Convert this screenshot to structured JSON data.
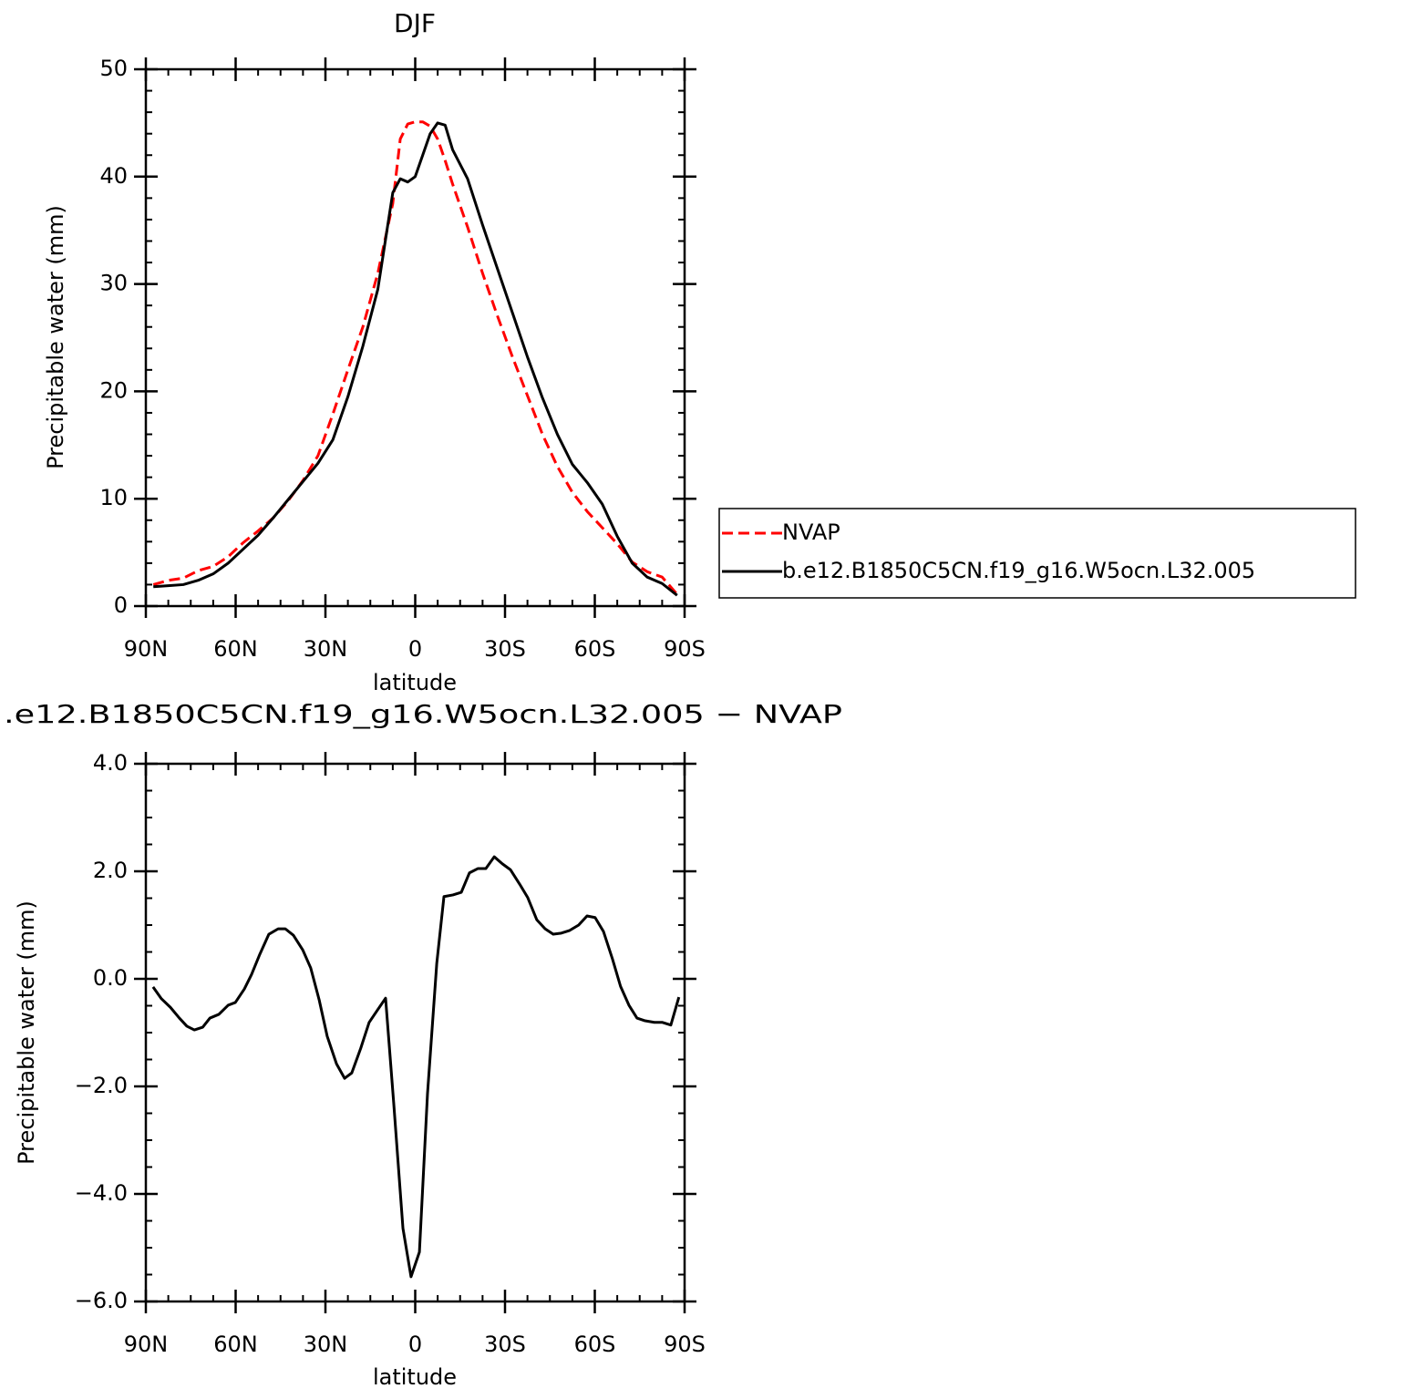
{
  "chart_data": [
    {
      "type": "line",
      "title": "DJF",
      "xlabel": "latitude",
      "ylabel": "Precipitable water (mm)",
      "xlim": [
        90,
        -90
      ],
      "xticks": [
        {
          "value": 90,
          "label": "90N"
        },
        {
          "value": 60,
          "label": "60N"
        },
        {
          "value": 30,
          "label": "30N"
        },
        0,
        {
          "value": -30,
          "label": "30S"
        },
        {
          "value": -60,
          "label": "60S"
        },
        {
          "value": -90,
          "label": "90S"
        }
      ],
      "xminorticks": [
        82.5,
        75,
        67.5,
        52.5,
        45,
        37.5,
        22.5,
        15,
        7.5,
        -7.5,
        -15,
        -22.5,
        -37.5,
        -45,
        -52.5,
        -67.5,
        -75,
        -82.5
      ],
      "ylim": [
        0,
        50
      ],
      "yticks": [
        0,
        10,
        20,
        30,
        40,
        50
      ],
      "yminorticks": [
        2,
        4,
        6,
        8,
        12,
        14,
        16,
        18,
        22,
        24,
        26,
        28,
        32,
        34,
        36,
        38,
        42,
        44,
        46,
        48
      ],
      "legend": "right",
      "x": [
        87.5,
        82.5,
        77.5,
        72.5,
        67.5,
        62.5,
        57.5,
        52.5,
        47.5,
        42.5,
        37.5,
        32.5,
        27.5,
        22.5,
        17.5,
        12.5,
        7.5,
        5,
        2.5,
        0,
        -2.5,
        -5,
        -7.5,
        -10,
        -12.5,
        -17.5,
        -22.5,
        -27.5,
        -32.5,
        -37.5,
        -42.5,
        -47.5,
        -52.5,
        -57.5,
        -62.5,
        -67.5,
        -72.5,
        -77.5,
        -82.5,
        -87.5
      ],
      "series": [
        {
          "name": "NVAP",
          "color": "#ff0000",
          "style": "dashed",
          "values": [
            2.0,
            2.4,
            2.6,
            3.3,
            3.7,
            4.6,
            5.9,
            7.0,
            8.2,
            9.8,
            11.7,
            14.0,
            17.9,
            22.0,
            26.0,
            31.0,
            37.5,
            43.5,
            44.9,
            45.1,
            45.1,
            44.7,
            43.5,
            41.5,
            39.3,
            35.3,
            31.0,
            27.0,
            23.2,
            19.6,
            16.0,
            13.0,
            10.6,
            8.8,
            7.3,
            5.8,
            4.1,
            3.2,
            2.7,
            1.1
          ]
        },
        {
          "name": "b.e12.B1850C5CN.f19_g16.W5ocn.L32.005",
          "color": "#000000",
          "style": "solid",
          "values": [
            1.8,
            1.9,
            2.0,
            2.4,
            3.0,
            4.0,
            5.3,
            6.6,
            8.2,
            9.9,
            11.6,
            13.3,
            15.5,
            19.5,
            24.2,
            29.5,
            38.5,
            39.8,
            39.5,
            40.0,
            42.0,
            44.0,
            45.0,
            44.8,
            42.5,
            39.8,
            35.5,
            31.4,
            27.3,
            23.2,
            19.4,
            16.0,
            13.2,
            11.5,
            9.5,
            6.5,
            4.0,
            2.7,
            2.1,
            1.0
          ]
        }
      ]
    },
    {
      "type": "line",
      "title": ".e12.B1850C5CN.f19_g16.W5ocn.L32.005 − NVAP",
      "xlabel": "latitude",
      "ylabel": "Precipitable water (mm)",
      "xlim": [
        90,
        -90
      ],
      "xticks": [
        {
          "value": 90,
          "label": "90N"
        },
        {
          "value": 60,
          "label": "60N"
        },
        {
          "value": 30,
          "label": "30N"
        },
        0,
        {
          "value": -30,
          "label": "30S"
        },
        {
          "value": -60,
          "label": "60S"
        },
        {
          "value": -90,
          "label": "90S"
        }
      ],
      "xminorticks": [
        82.5,
        75,
        67.5,
        52.5,
        45,
        37.5,
        22.5,
        15,
        7.5,
        -7.5,
        -15,
        -22.5,
        -37.5,
        -45,
        -52.5,
        -67.5,
        -75,
        -82.5
      ],
      "ylim": [
        -6,
        4
      ],
      "yticks": [
        {
          "value": -6,
          "label": "−6.0"
        },
        {
          "value": -4,
          "label": "−4.0"
        },
        {
          "value": -2,
          "label": "−2.0"
        },
        {
          "value": 0,
          "label": "0.0"
        },
        {
          "value": 2,
          "label": "2.0"
        },
        {
          "value": 4,
          "label": "4.0"
        }
      ],
      "yminorticks": [
        -5.5,
        -5,
        -4.5,
        -3.5,
        -3,
        -2.5,
        -1.5,
        -1,
        -0.5,
        0.5,
        1,
        1.5,
        2.5,
        3,
        3.5
      ],
      "x": [
        87.6,
        84.8,
        81.8,
        78.8,
        76.3,
        73.8,
        71.0,
        68.6,
        65.6,
        62.5,
        60.1,
        57.1,
        54.7,
        51.9,
        48.9,
        45.8,
        43.4,
        40.7,
        37.6,
        34.9,
        32.1,
        29.4,
        26.3,
        23.6,
        21.2,
        18.2,
        15.4,
        12.6,
        9.9,
        7.2,
        4.1,
        1.4,
        -1.4,
        -4.1,
        -7.2,
        -9.6,
        -12.6,
        -15.4,
        -18.1,
        -20.9,
        -23.6,
        -26.4,
        -29.1,
        -31.8,
        -34.9,
        -37.6,
        -40.6,
        -43.4,
        -46.1,
        -48.8,
        -51.6,
        -54.6,
        -57.4,
        -60.1,
        -62.9,
        -65.9,
        -68.6,
        -71.4,
        -74.1,
        -76.8,
        -79.9,
        -82.6,
        -85.4,
        -88.1
      ],
      "color": "#000000",
      "values": [
        -0.15,
        -0.37,
        -0.53,
        -0.73,
        -0.88,
        -0.95,
        -0.9,
        -0.73,
        -0.66,
        -0.49,
        -0.44,
        -0.19,
        0.08,
        0.46,
        0.83,
        0.93,
        0.93,
        0.81,
        0.54,
        0.2,
        -0.39,
        -1.07,
        -1.58,
        -1.85,
        -1.75,
        -1.29,
        -0.81,
        -0.58,
        -0.36,
        -2.3,
        -4.64,
        -5.54,
        -5.08,
        -2.14,
        0.29,
        1.53,
        1.56,
        1.61,
        1.97,
        2.05,
        2.05,
        2.27,
        2.14,
        2.03,
        1.76,
        1.51,
        1.1,
        0.93,
        0.83,
        0.85,
        0.9,
        1.0,
        1.17,
        1.14,
        0.88,
        0.37,
        -0.14,
        -0.49,
        -0.73,
        -0.78,
        -0.81,
        -0.81,
        -0.86,
        -0.34
      ]
    }
  ]
}
